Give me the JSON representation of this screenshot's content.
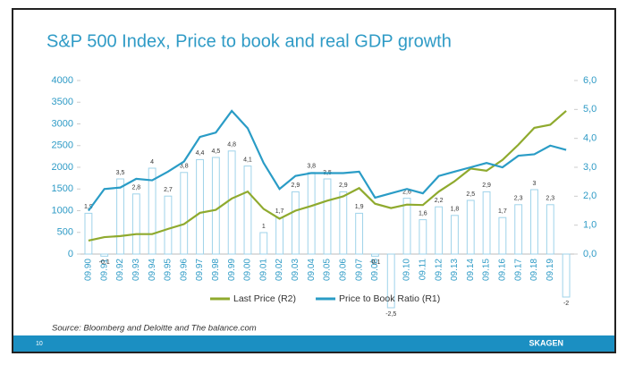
{
  "chart_data": {
    "type": "combo",
    "title": "S&P 500 Index, Price to book and real GDP growth",
    "categories": [
      "09.90",
      "09.91",
      "09.92",
      "09.93",
      "09.94",
      "09.95",
      "09.96",
      "09.97",
      "09.98",
      "09.99",
      "09.00",
      "09.01",
      "09.02",
      "09.03",
      "09.04",
      "09.05",
      "09.06",
      "09.07",
      "09.08",
      "09.09",
      "09.10",
      "09.11",
      "09.12",
      "09.13",
      "09.14",
      "09.15",
      "09.16",
      "09.17",
      "09.18",
      "09.19",
      null
    ],
    "series": [
      {
        "name": "Last Price  (R2)",
        "color": "#8faa2e",
        "kind": "line",
        "axis": "y",
        "values": [
          310,
          390,
          415,
          460,
          460,
          580,
          690,
          950,
          1020,
          1280,
          1440,
          1040,
          815,
          1000,
          1110,
          1230,
          1330,
          1520,
          1160,
          1060,
          1140,
          1130,
          1440,
          1680,
          1970,
          1920,
          2170,
          2520,
          2910,
          2980,
          3300
        ]
      },
      {
        "name": "Price to Book Ratio  (R1)",
        "color": "#2a9cc6",
        "kind": "line",
        "axis": "y2",
        "values": [
          1.5,
          2.25,
          2.3,
          2.6,
          2.55,
          2.85,
          3.2,
          4.05,
          4.2,
          4.95,
          4.35,
          3.15,
          2.25,
          2.7,
          2.8,
          2.8,
          2.8,
          2.85,
          1.95,
          2.1,
          2.25,
          2.1,
          2.7,
          2.85,
          3.0,
          3.15,
          3.0,
          3.4,
          3.45,
          3.75,
          3.6
        ]
      },
      {
        "kind": "bar",
        "color": "#9fd3ea",
        "values": [
          1.9,
          -0.1,
          3.5,
          2.8,
          4,
          2.7,
          3.8,
          4.4,
          4.5,
          4.8,
          4.1,
          1,
          1.7,
          2.9,
          3.8,
          3.5,
          2.9,
          1.9,
          -0.1,
          -2.5,
          2.6,
          1.6,
          2.2,
          1.8,
          2.5,
          2.9,
          1.7,
          2.3,
          3,
          2.3,
          -2
        ],
        "value_labels": [
          "1,9",
          "-0,1",
          "3,5",
          "2,8",
          "4",
          "2,7",
          "3,8",
          "4,4",
          "4,5",
          "4,8",
          "4,1",
          "1",
          "1,7",
          "2,9",
          "3,8",
          "3,5",
          "2,9",
          "1,9",
          "-0,1",
          "-2,5",
          "2,6",
          "1,6",
          "2,2",
          "1,8",
          "2,5",
          "2,9",
          "1,7",
          "2,3",
          "3",
          "2,3",
          "-2"
        ]
      }
    ],
    "ylim": [
      0,
      4000
    ],
    "yticks": [
      0,
      500,
      1000,
      1500,
      2000,
      2500,
      3000,
      3500,
      4000
    ],
    "y2lim": [
      0,
      6
    ],
    "y2ticks": [
      {
        "value": 0,
        "label": "0,0"
      },
      {
        "value": 1,
        "label": "1,0"
      },
      {
        "value": 2,
        "label": "2,0"
      },
      {
        "value": 3,
        "label": "3,0"
      },
      {
        "value": 4,
        "label": "4,0"
      },
      {
        "value": 5,
        "label": "5,0"
      },
      {
        "value": 6,
        "label": "6,0"
      }
    ],
    "legend": "bottom",
    "grid": false
  },
  "source": "Source: Bloomberg and Deloitte and The balance.com",
  "page_number": "10",
  "brand": "SKAGEN"
}
